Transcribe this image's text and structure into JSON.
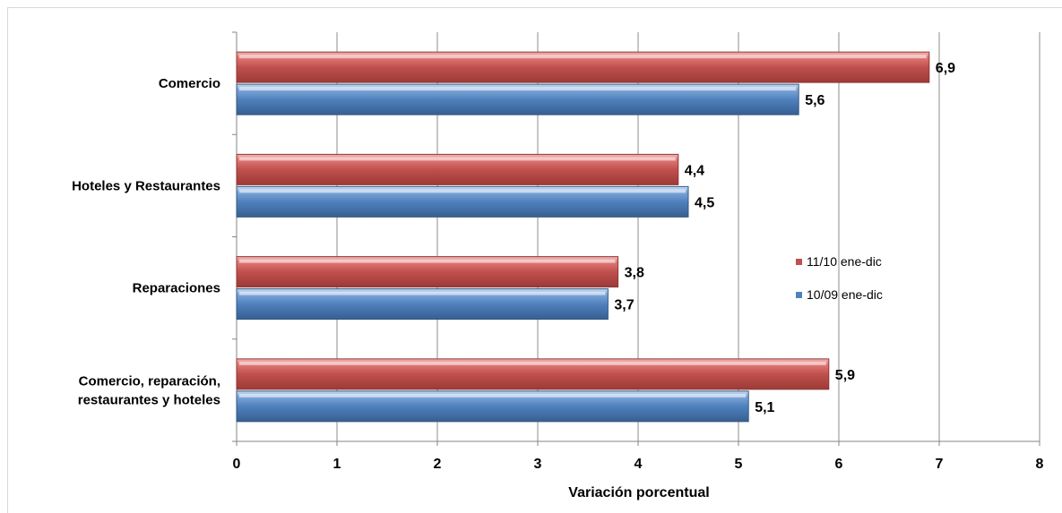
{
  "chart_data": {
    "type": "bar",
    "orientation": "horizontal",
    "categories": [
      [
        "Comercio"
      ],
      [
        "Hoteles y Restaurantes"
      ],
      [
        "Reparaciones"
      ],
      [
        "Comercio, reparación,",
        "restaurantes  y hoteles"
      ]
    ],
    "series": [
      {
        "name": "11/10 ene-dic",
        "color": "#c0504d",
        "values": [
          6.9,
          4.4,
          3.8,
          5.9
        ],
        "labels": [
          "6,9",
          "4,4",
          "3,8",
          "5,9"
        ]
      },
      {
        "name": "10/09 ene-dic",
        "color": "#4f81bd",
        "values": [
          5.6,
          4.5,
          3.7,
          5.1
        ],
        "labels": [
          "5,6",
          "4,5",
          "3,7",
          "5,1"
        ]
      }
    ],
    "xlabel": "Variación porcentual",
    "xlim": [
      0,
      8
    ],
    "xticks": [
      "0",
      "1",
      "2",
      "3",
      "4",
      "5",
      "6",
      "7",
      "8"
    ],
    "grid": true,
    "legend_position": "right"
  }
}
